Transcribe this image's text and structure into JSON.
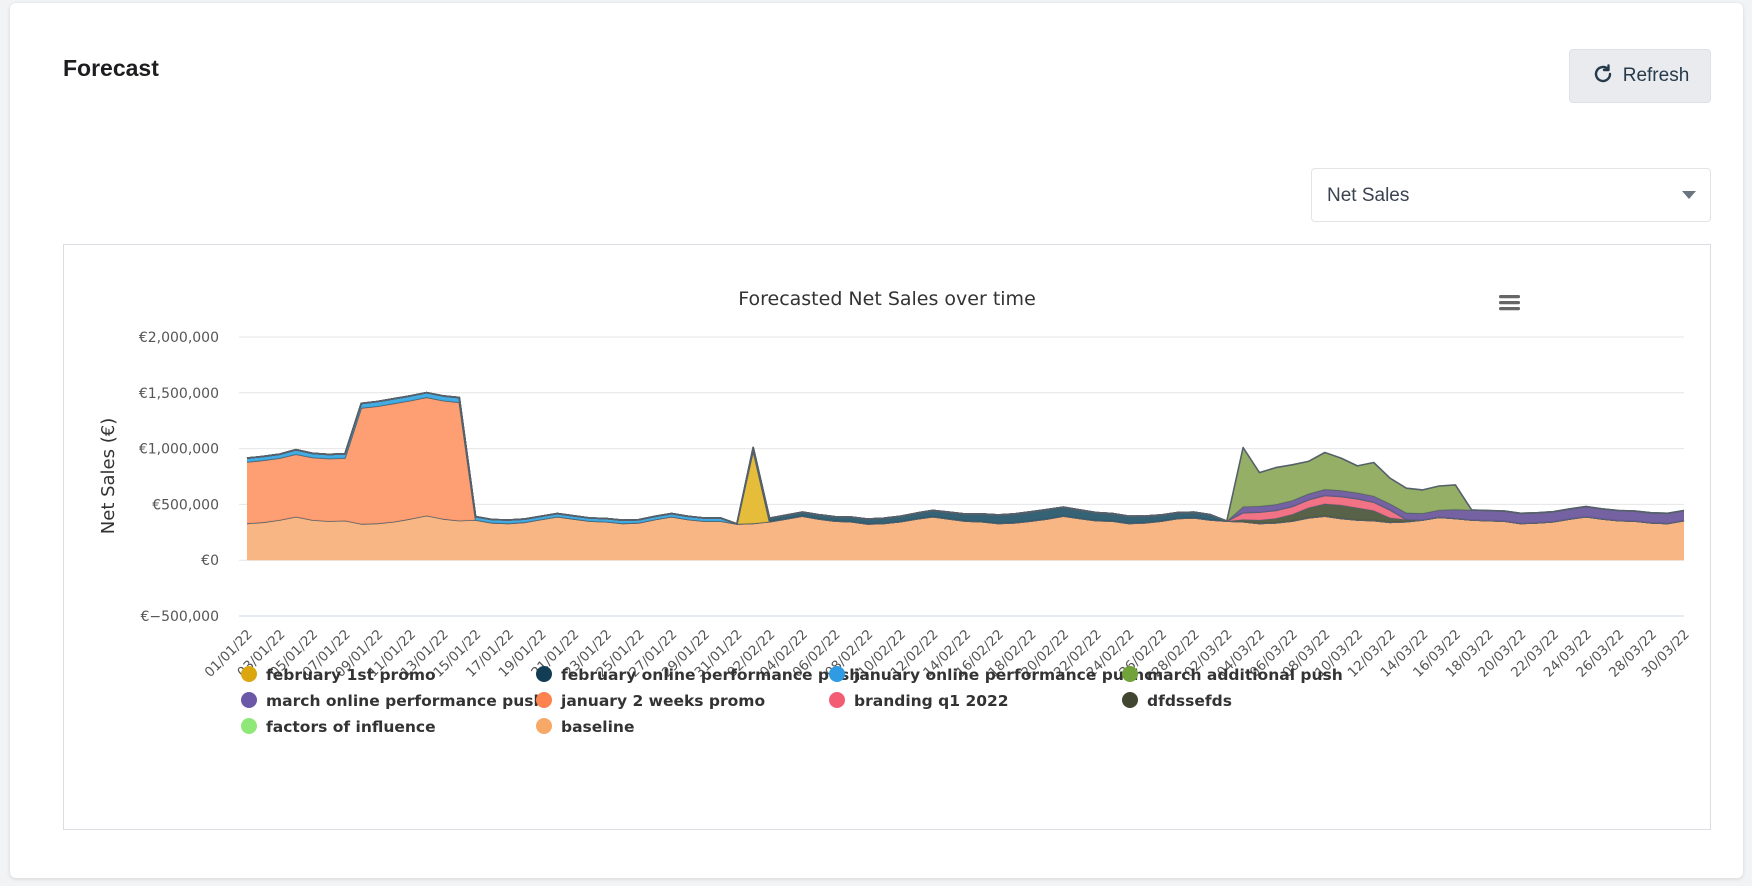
{
  "header": {
    "title": "Forecast",
    "refresh_label": "Refresh"
  },
  "metric_select": {
    "value": "Net Sales"
  },
  "chart_data": {
    "type": "area",
    "stacked": true,
    "title": "Forecasted Net Sales over time",
    "ylabel": "Net Sales (€)",
    "ylim": [
      -500000,
      2000000
    ],
    "yticks": [
      -500000,
      0,
      500000,
      1000000,
      1500000,
      2000000
    ],
    "ytick_labels": [
      "€−500,000",
      "€0",
      "€500,000",
      "€1,000,000",
      "€1,500,000",
      "€2,000,000"
    ],
    "xtick_labels": [
      "01/01/22",
      "03/01/22",
      "05/01/22",
      "07/01/22",
      "09/01/22",
      "11/01/22",
      "13/01/22",
      "15/01/22",
      "17/01/22",
      "19/01/22",
      "21/01/22",
      "23/01/22",
      "25/01/22",
      "27/01/22",
      "29/01/22",
      "31/01/22",
      "02/02/22",
      "04/02/22",
      "06/02/22",
      "08/02/22",
      "10/02/22",
      "12/02/22",
      "14/02/22",
      "16/02/22",
      "18/02/22",
      "20/02/22",
      "22/02/22",
      "24/02/22",
      "26/02/22",
      "28/02/22",
      "02/03/22",
      "04/03/22",
      "06/03/22",
      "08/03/22",
      "10/03/22",
      "12/03/22",
      "14/03/22",
      "16/03/22",
      "18/03/22",
      "20/03/22",
      "22/03/22",
      "24/03/22",
      "26/03/22",
      "28/03/22",
      "30/03/22"
    ],
    "n_days": 89,
    "series": [
      {
        "name": "baseline",
        "color": "#f7b27d",
        "values": [
          330,
          340,
          360,
          390,
          360,
          350,
          355,
          325,
          330,
          345,
          370,
          400,
          370,
          355,
          360,
          335,
          330,
          340,
          365,
          390,
          370,
          350,
          345,
          330,
          335,
          365,
          390,
          365,
          350,
          350,
          325,
          330,
          345,
          370,
          395,
          370,
          350,
          345,
          325,
          330,
          345,
          370,
          390,
          370,
          350,
          345,
          330,
          335,
          350,
          370,
          395,
          375,
          355,
          350,
          330,
          335,
          350,
          375,
          380,
          360,
          350,
          345,
          330,
          335,
          350,
          380,
          395,
          375,
          360,
          355,
          340,
          345,
          360,
          385,
          375,
          360,
          355,
          350,
          330,
          335,
          345,
          370,
          390,
          370,
          355,
          350,
          335,
          330,
          355
        ]
      },
      {
        "name": "january 2 weeks promo",
        "color": "#fe9a6c",
        "values": [
          550,
          555,
          555,
          560,
          560,
          560,
          560,
          1040,
          1050,
          1060,
          1060,
          1060,
          1060,
          1060,
          0,
          0,
          0,
          0,
          0,
          0,
          0,
          0,
          0,
          0,
          0,
          0,
          0,
          0,
          0,
          0,
          0,
          0,
          0,
          0,
          0,
          0,
          0,
          0,
          0,
          0,
          0,
          0,
          0,
          0,
          0,
          0,
          0,
          0,
          0,
          0,
          0,
          0,
          0,
          0,
          0,
          0,
          0,
          0,
          0,
          0,
          0,
          0,
          0,
          0,
          0,
          0,
          0,
          0,
          0,
          0,
          0,
          0,
          0,
          0,
          0,
          0,
          0,
          0,
          0,
          0,
          0,
          0,
          0,
          0,
          0,
          0,
          0,
          0,
          0
        ]
      },
      {
        "name": "january online performance pushc",
        "color": "#38a9e3",
        "values": [
          35,
          35,
          35,
          40,
          38,
          38,
          38,
          40,
          42,
          42,
          42,
          42,
          42,
          42,
          30,
          30,
          30,
          28,
          28,
          28,
          28,
          28,
          28,
          28,
          28,
          28,
          28,
          28,
          28,
          28,
          0,
          0,
          0,
          0,
          0,
          0,
          0,
          0,
          0,
          0,
          0,
          0,
          0,
          0,
          0,
          0,
          0,
          0,
          0,
          0,
          0,
          0,
          0,
          0,
          0,
          0,
          0,
          0,
          0,
          0,
          0,
          0,
          0,
          0,
          0,
          0,
          0,
          0,
          0,
          0,
          0,
          0,
          0,
          0,
          0,
          0,
          0,
          0,
          0,
          0,
          0,
          0,
          0,
          0,
          0,
          0,
          0,
          0,
          0
        ]
      },
      {
        "name": "february 1st promo",
        "color": "#e5b830",
        "values": [
          0,
          0,
          0,
          0,
          0,
          0,
          0,
          0,
          0,
          0,
          0,
          0,
          0,
          0,
          0,
          0,
          0,
          0,
          0,
          0,
          0,
          0,
          0,
          0,
          0,
          0,
          0,
          0,
          0,
          0,
          0,
          650,
          0,
          0,
          0,
          0,
          0,
          0,
          0,
          0,
          0,
          0,
          0,
          0,
          0,
          0,
          0,
          0,
          0,
          0,
          0,
          0,
          0,
          0,
          0,
          0,
          0,
          0,
          0,
          0,
          0,
          0,
          0,
          0,
          0,
          0,
          0,
          0,
          0,
          0,
          0,
          0,
          0,
          0,
          0,
          0,
          0,
          0,
          0,
          0,
          0,
          0,
          0,
          0,
          0,
          0,
          0,
          0,
          0
        ]
      },
      {
        "name": "february online performance push",
        "color": "#2b5a6e",
        "values": [
          0,
          0,
          0,
          0,
          0,
          0,
          0,
          0,
          0,
          0,
          0,
          0,
          0,
          0,
          0,
          0,
          0,
          0,
          0,
          0,
          0,
          0,
          0,
          0,
          0,
          0,
          0,
          0,
          0,
          0,
          0,
          30,
          32,
          34,
          36,
          38,
          40,
          42,
          44,
          46,
          48,
          52,
          56,
          60,
          64,
          70,
          76,
          80,
          84,
          84,
          80,
          76,
          72,
          68,
          64,
          60,
          56,
          52,
          50,
          48,
          0,
          0,
          0,
          0,
          0,
          0,
          0,
          0,
          0,
          0,
          0,
          0,
          0,
          0,
          0,
          0,
          0,
          0,
          0,
          0,
          0,
          0,
          0,
          0,
          0,
          0,
          0,
          0,
          0
        ]
      },
      {
        "name": "factors of influence",
        "color": "#8de878",
        "values": [
          0,
          0,
          0,
          0,
          0,
          0,
          0,
          0,
          0,
          0,
          0,
          0,
          0,
          0,
          0,
          0,
          0,
          0,
          0,
          0,
          0,
          0,
          0,
          0,
          0,
          0,
          0,
          0,
          0,
          0,
          0,
          0,
          0,
          0,
          0,
          0,
          0,
          0,
          0,
          0,
          0,
          0,
          0,
          0,
          0,
          0,
          0,
          0,
          0,
          0,
          0,
          0,
          0,
          0,
          0,
          0,
          0,
          0,
          0,
          0,
          0,
          0,
          0,
          0,
          0,
          0,
          0,
          0,
          0,
          0,
          0,
          0,
          0,
          0,
          0,
          0,
          0,
          0,
          0,
          0,
          0,
          0,
          0,
          0,
          0,
          0,
          0,
          0,
          0
        ]
      },
      {
        "name": "dfdssefds",
        "color": "#4f5a3f",
        "values": [
          0,
          0,
          0,
          0,
          0,
          0,
          0,
          0,
          0,
          0,
          0,
          0,
          0,
          0,
          0,
          0,
          0,
          0,
          0,
          0,
          0,
          0,
          0,
          0,
          0,
          0,
          0,
          0,
          0,
          0,
          0,
          0,
          0,
          0,
          0,
          0,
          0,
          0,
          0,
          0,
          0,
          0,
          0,
          0,
          0,
          0,
          0,
          0,
          0,
          0,
          0,
          0,
          0,
          0,
          0,
          0,
          0,
          0,
          0,
          0,
          0,
          20,
          30,
          40,
          60,
          90,
          110,
          120,
          110,
          90,
          40,
          20,
          0,
          0,
          0,
          0,
          0,
          0,
          0,
          0,
          0,
          0,
          0,
          0,
          0,
          0,
          0,
          0,
          0
        ]
      },
      {
        "name": "branding q1 2022",
        "color": "#f26b7f",
        "values": [
          0,
          0,
          0,
          0,
          0,
          0,
          0,
          0,
          0,
          0,
          0,
          0,
          0,
          0,
          0,
          0,
          0,
          0,
          0,
          0,
          0,
          0,
          0,
          0,
          0,
          0,
          0,
          0,
          0,
          0,
          0,
          0,
          0,
          0,
          0,
          0,
          0,
          0,
          0,
          0,
          0,
          0,
          0,
          0,
          0,
          0,
          0,
          0,
          0,
          0,
          0,
          0,
          0,
          0,
          0,
          0,
          0,
          0,
          0,
          0,
          0,
          60,
          70,
          70,
          70,
          70,
          75,
          75,
          80,
          75,
          70,
          0,
          0,
          0,
          0,
          0,
          0,
          0,
          0,
          0,
          0,
          0,
          0,
          0,
          0,
          0,
          0,
          0,
          0
        ]
      },
      {
        "name": "march online performance push",
        "color": "#6d5a9e",
        "values": [
          0,
          0,
          0,
          0,
          0,
          0,
          0,
          0,
          0,
          0,
          0,
          0,
          0,
          0,
          0,
          0,
          0,
          0,
          0,
          0,
          0,
          0,
          0,
          0,
          0,
          0,
          0,
          0,
          0,
          0,
          0,
          0,
          0,
          0,
          0,
          0,
          0,
          0,
          0,
          0,
          0,
          0,
          0,
          0,
          0,
          0,
          0,
          0,
          0,
          0,
          0,
          0,
          0,
          0,
          0,
          0,
          0,
          0,
          0,
          0,
          0,
          55,
          55,
          55,
          55,
          55,
          55,
          55,
          55,
          55,
          55,
          60,
          60,
          65,
          80,
          90,
          90,
          90,
          90,
          90,
          90,
          90,
          90,
          90,
          90,
          90,
          90,
          90,
          90
        ]
      },
      {
        "name": "march additional push",
        "color": "#8fab5f",
        "values": [
          0,
          0,
          0,
          0,
          0,
          0,
          0,
          0,
          0,
          0,
          0,
          0,
          0,
          0,
          0,
          0,
          0,
          0,
          0,
          0,
          0,
          0,
          0,
          0,
          0,
          0,
          0,
          0,
          0,
          0,
          0,
          0,
          0,
          0,
          0,
          0,
          0,
          0,
          0,
          0,
          0,
          0,
          0,
          0,
          0,
          0,
          0,
          0,
          0,
          0,
          0,
          0,
          0,
          0,
          0,
          0,
          0,
          0,
          0,
          0,
          0,
          530,
          300,
          330,
          320,
          290,
          330,
          290,
          240,
          300,
          230,
          220,
          210,
          215,
          220,
          0,
          0,
          0,
          0,
          0,
          0,
          0,
          0,
          0,
          0,
          0,
          0,
          0,
          0
        ]
      }
    ],
    "legend": [
      "february 1st promo",
      "february online performance push",
      "january online performance pushc",
      "march additional push",
      "march online performance push",
      "january 2 weeks promo",
      "branding q1 2022",
      "dfdssefds",
      "factors of influence",
      "baseline"
    ],
    "legend_colors": [
      "#dba60e",
      "#133d54",
      "#2e9be3",
      "#72a23a",
      "#6b58a7",
      "#fc8250",
      "#f25d73",
      "#414630",
      "#8de878",
      "#f7a866"
    ],
    "value_unit": "thousands €"
  }
}
